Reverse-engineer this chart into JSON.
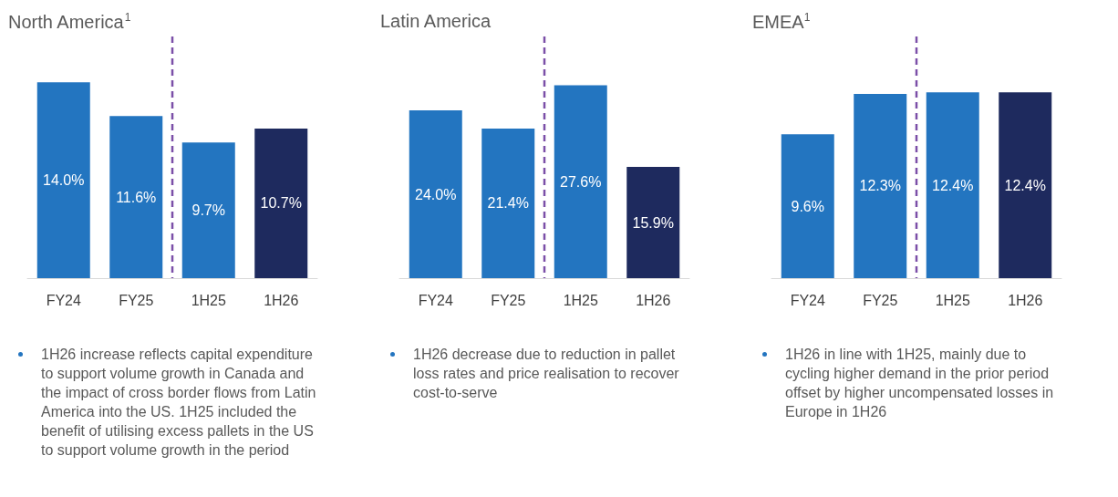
{
  "chart_data": [
    {
      "type": "bar",
      "title": "North America$^{1}$",
      "categories": [
        "FY24",
        "FY25",
        "1H25",
        "1H26"
      ],
      "values": [
        14.0,
        11.6,
        9.7,
        10.7
      ],
      "colors": [
        "#2375c0",
        "#2375c0",
        "#2375c0",
        "#1e2a5e"
      ],
      "value_labels": [
        "14.0%",
        "11.6%",
        "9.7%",
        "10.7%"
      ],
      "annotations": [
        "1H26 increase reflects capital expenditure to support volume growth in Canada and the impact of cross border flows from Latin America into the US. 1H25 included the benefit of utilising excess pallets in the US to support volume growth in the period"
      ]
    },
    {
      "type": "bar",
      "title": "Latin America",
      "categories": [
        "FY24",
        "FY25",
        "1H25",
        "1H26"
      ],
      "values": [
        24.0,
        21.4,
        27.6,
        15.9
      ],
      "colors": [
        "#2375c0",
        "#2375c0",
        "#2375c0",
        "#1e2a5e"
      ],
      "value_labels": [
        "24.0%",
        "21.4%",
        "27.6%",
        "15.9%"
      ],
      "annotations": [
        "1H26 decrease due to reduction in pallet loss rates and price realisation to recover cost-to-serve"
      ]
    },
    {
      "type": "bar",
      "title": "EMEA$^{1}$",
      "categories": [
        "FY24",
        "FY25",
        "1H25",
        "1H26"
      ],
      "values": [
        9.6,
        12.3,
        12.4,
        12.4
      ],
      "colors": [
        "#2375c0",
        "#2375c0",
        "#2375c0",
        "#1e2a5e"
      ],
      "value_labels": [
        "9.6%",
        "12.3%",
        "12.4%",
        "12.4%"
      ],
      "annotations": [
        "1H26 in line with 1H25, mainly due to cycling higher demand in the prior period offset by higher uncompensated losses in Europe in 1H26"
      ]
    }
  ]
}
